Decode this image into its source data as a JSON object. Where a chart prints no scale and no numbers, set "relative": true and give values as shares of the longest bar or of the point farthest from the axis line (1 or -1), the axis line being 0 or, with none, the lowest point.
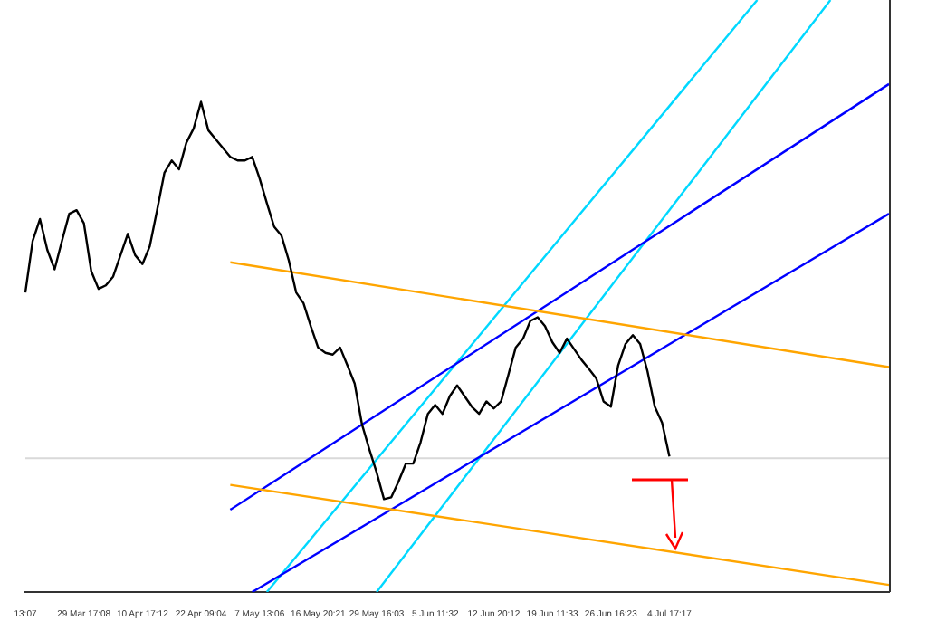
{
  "chart_data": {
    "type": "line",
    "relative": true,
    "grid": false,
    "legend": false,
    "marker": "none",
    "line_style": "solid",
    "categories": [
      "13:07",
      null,
      null,
      null,
      null,
      null,
      null,
      null,
      "29 Mar 17:08",
      null,
      null,
      null,
      null,
      null,
      null,
      null,
      "10 Apr 17:12",
      null,
      null,
      null,
      null,
      null,
      null,
      null,
      "22 Apr 09:04",
      null,
      null,
      null,
      null,
      null,
      null,
      null,
      "7 May 13:06",
      null,
      null,
      null,
      null,
      null,
      null,
      null,
      "16 May 20:21",
      null,
      null,
      null,
      null,
      null,
      null,
      null,
      "29 May 16:03",
      null,
      null,
      null,
      null,
      null,
      null,
      null,
      "5 Jun 11:32",
      null,
      null,
      null,
      null,
      null,
      null,
      null,
      "12 Jun 20:12",
      null,
      null,
      null,
      null,
      null,
      null,
      null,
      "19 Jun 11:33",
      null,
      null,
      null,
      null,
      null,
      null,
      null,
      "26 Jun 16:23",
      null,
      null,
      null,
      null,
      null,
      null,
      null,
      "4 Jul 17:17",
      null,
      null,
      null,
      null,
      null,
      null,
      null,
      null,
      null,
      null,
      null,
      null,
      null,
      null,
      null,
      null,
      null,
      null,
      null,
      null,
      null,
      null,
      null,
      null,
      null,
      null,
      null,
      null,
      null,
      null
    ],
    "series": [
      {
        "color": "#000000",
        "values": [
          0.506,
          0.593,
          0.63,
          0.578,
          0.545,
          0.593,
          0.639,
          0.645,
          0.623,
          0.542,
          0.512,
          0.518,
          0.533,
          0.569,
          0.605,
          0.569,
          0.554,
          0.584,
          0.645,
          0.708,
          0.729,
          0.714,
          0.759,
          0.783,
          0.828,
          0.78,
          0.765,
          0.75,
          0.735,
          0.729,
          0.729,
          0.735,
          0.699,
          0.657,
          0.617,
          0.602,
          0.56,
          0.506,
          0.488,
          0.449,
          0.413,
          0.404,
          0.401,
          0.413,
          0.383,
          0.352,
          0.283,
          0.241,
          0.202,
          0.157,
          0.16,
          0.187,
          0.217,
          0.217,
          0.253,
          0.301,
          0.316,
          0.301,
          0.331,
          0.349,
          0.331,
          0.313,
          0.301,
          0.322,
          0.31,
          0.322,
          0.367,
          0.413,
          0.428,
          0.458,
          0.464,
          0.449,
          0.422,
          0.404,
          0.428,
          0.41,
          0.392,
          0.377,
          0.361,
          0.322,
          0.313,
          0.383,
          0.419,
          0.434,
          0.419,
          0.373,
          0.313,
          0.286,
          0.229,
          null,
          null,
          null,
          null,
          null,
          null,
          null,
          null,
          null,
          null,
          null,
          null,
          null,
          null,
          null,
          null,
          null,
          null,
          null,
          null,
          null,
          null,
          null,
          null,
          null,
          null,
          null,
          null,
          null,
          null
        ]
      },
      {
        "color": "#ffa500",
        "values": [
          null,
          null,
          null,
          null,
          null,
          null,
          null,
          null,
          null,
          null,
          null,
          null,
          null,
          null,
          null,
          null,
          null,
          null,
          null,
          null,
          null,
          null,
          null,
          null,
          null,
          null,
          null,
          null,
          0.557,
          null,
          null,
          null,
          null,
          null,
          null,
          null,
          null,
          null,
          null,
          null,
          null,
          null,
          null,
          null,
          null,
          null,
          null,
          null,
          null,
          null,
          null,
          null,
          null,
          null,
          null,
          null,
          null,
          null,
          null,
          null,
          null,
          null,
          null,
          null,
          null,
          null,
          null,
          null,
          null,
          null,
          null,
          null,
          null,
          null,
          null,
          null,
          null,
          null,
          null,
          null,
          null,
          null,
          null,
          null,
          null,
          null,
          null,
          null,
          null,
          null,
          null,
          null,
          null,
          null,
          null,
          null,
          null,
          null,
          null,
          null,
          null,
          null,
          null,
          null,
          null,
          null,
          null,
          null,
          null,
          null,
          null,
          null,
          null,
          null,
          null,
          null,
          null,
          null,
          0.38
        ]
      },
      {
        "color": "#ffa500",
        "values": [
          null,
          null,
          null,
          null,
          null,
          null,
          null,
          null,
          null,
          null,
          null,
          null,
          null,
          null,
          null,
          null,
          null,
          null,
          null,
          null,
          null,
          null,
          null,
          null,
          null,
          null,
          null,
          null,
          0.181,
          null,
          null,
          null,
          null,
          null,
          null,
          null,
          null,
          null,
          null,
          null,
          null,
          null,
          null,
          null,
          null,
          null,
          null,
          null,
          null,
          null,
          null,
          null,
          null,
          null,
          null,
          null,
          null,
          null,
          null,
          null,
          null,
          null,
          null,
          null,
          null,
          null,
          null,
          null,
          null,
          null,
          null,
          null,
          null,
          null,
          null,
          null,
          null,
          null,
          null,
          null,
          null,
          null,
          null,
          null,
          null,
          null,
          null,
          null,
          null,
          null,
          null,
          null,
          null,
          null,
          null,
          null,
          null,
          null,
          null,
          null,
          null,
          null,
          null,
          null,
          null,
          null,
          null,
          null,
          null,
          null,
          null,
          null,
          null,
          null,
          null,
          null,
          null,
          null,
          0.012
        ]
      },
      {
        "color": "#0000ff",
        "values": [
          null,
          null,
          null,
          null,
          null,
          null,
          null,
          null,
          null,
          null,
          null,
          null,
          null,
          null,
          null,
          null,
          null,
          null,
          null,
          null,
          null,
          null,
          null,
          null,
          null,
          null,
          null,
          null,
          0.139,
          null,
          null,
          null,
          null,
          null,
          null,
          null,
          null,
          null,
          null,
          null,
          null,
          null,
          null,
          null,
          null,
          null,
          null,
          null,
          null,
          null,
          null,
          null,
          null,
          null,
          null,
          null,
          null,
          null,
          null,
          null,
          null,
          null,
          null,
          null,
          null,
          null,
          null,
          null,
          null,
          null,
          null,
          null,
          null,
          null,
          null,
          null,
          null,
          null,
          null,
          null,
          null,
          null,
          null,
          null,
          null,
          null,
          null,
          null,
          null,
          null,
          null,
          null,
          null,
          null,
          null,
          null,
          null,
          null,
          null,
          null,
          null,
          null,
          null,
          null,
          null,
          null,
          null,
          null,
          null,
          null,
          null,
          null,
          null,
          null,
          null,
          null,
          null,
          null,
          0.858
        ]
      },
      {
        "color": "#0000ff",
        "values": [
          null,
          null,
          null,
          null,
          null,
          null,
          null,
          null,
          null,
          null,
          null,
          null,
          null,
          null,
          null,
          null,
          null,
          null,
          null,
          null,
          null,
          null,
          null,
          null,
          null,
          null,
          null,
          null,
          null,
          null,
          null,
          0,
          null,
          null,
          null,
          null,
          null,
          null,
          null,
          null,
          null,
          null,
          null,
          null,
          null,
          null,
          null,
          null,
          null,
          null,
          null,
          null,
          null,
          null,
          null,
          null,
          null,
          null,
          null,
          null,
          null,
          null,
          null,
          null,
          null,
          null,
          null,
          null,
          null,
          null,
          null,
          null,
          null,
          null,
          null,
          null,
          null,
          null,
          null,
          null,
          null,
          null,
          null,
          null,
          null,
          null,
          null,
          null,
          null,
          null,
          null,
          null,
          null,
          null,
          null,
          null,
          null,
          null,
          null,
          null,
          null,
          null,
          null,
          null,
          null,
          null,
          null,
          null,
          null,
          null,
          null,
          null,
          null,
          null,
          null,
          null,
          null,
          null,
          0.639
        ]
      },
      {
        "color": "#00d8ff",
        "values": [
          null,
          null,
          null,
          null,
          null,
          null,
          null,
          null,
          null,
          null,
          null,
          null,
          null,
          null,
          null,
          null,
          null,
          null,
          null,
          null,
          null,
          null,
          null,
          null,
          null,
          null,
          null,
          null,
          null,
          null,
          null,
          null,
          null,
          0,
          null,
          null,
          null,
          null,
          null,
          null,
          null,
          null,
          null,
          null,
          null,
          null,
          null,
          null,
          null,
          null,
          null,
          null,
          null,
          null,
          null,
          null,
          null,
          null,
          null,
          null,
          null,
          null,
          null,
          null,
          null,
          null,
          null,
          null,
          null,
          null,
          null,
          null,
          null,
          null,
          null,
          null,
          null,
          null,
          null,
          null,
          null,
          null,
          null,
          null,
          null,
          null,
          null,
          null,
          null,
          null,
          null,
          null,
          null,
          null,
          null,
          null,
          null,
          null,
          null,
          null,
          1,
          null,
          null,
          null,
          null,
          null,
          null,
          null,
          null,
          null,
          null,
          null,
          null,
          null,
          null,
          null,
          null,
          null,
          null
        ]
      },
      {
        "color": "#00d8ff",
        "values": [
          null,
          null,
          null,
          null,
          null,
          null,
          null,
          null,
          null,
          null,
          null,
          null,
          null,
          null,
          null,
          null,
          null,
          null,
          null,
          null,
          null,
          null,
          null,
          null,
          null,
          null,
          null,
          null,
          null,
          null,
          null,
          null,
          null,
          null,
          null,
          null,
          null,
          null,
          null,
          null,
          null,
          null,
          null,
          null,
          null,
          null,
          null,
          null,
          0,
          null,
          null,
          null,
          null,
          null,
          null,
          null,
          null,
          null,
          null,
          null,
          null,
          null,
          null,
          null,
          null,
          null,
          null,
          null,
          null,
          null,
          null,
          null,
          null,
          null,
          null,
          null,
          null,
          null,
          null,
          null,
          null,
          null,
          null,
          null,
          null,
          null,
          null,
          null,
          null,
          null,
          null,
          null,
          null,
          null,
          null,
          null,
          null,
          null,
          null,
          null,
          null,
          null,
          null,
          null,
          null,
          null,
          null,
          null,
          null,
          null,
          1,
          null,
          null,
          null,
          null,
          null,
          null,
          null,
          null
        ]
      }
    ],
    "ref_lines": [
      {
        "axis": "y",
        "value": 0.226,
        "color": "#d9d9d9"
      }
    ]
  }
}
